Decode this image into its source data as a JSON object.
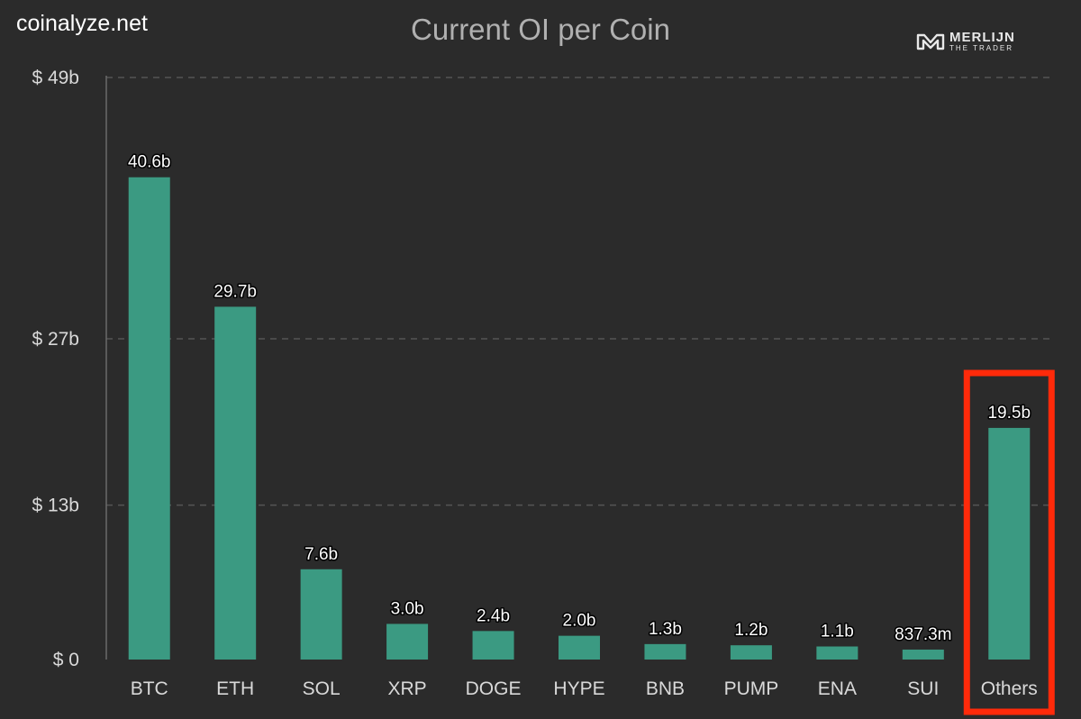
{
  "header": {
    "site_name": "coinalyze.net",
    "brand_line1": "MERLIJN",
    "brand_line2": "THE TRADER"
  },
  "colors": {
    "background": "#2b2b2b",
    "bar": "#3b9a82",
    "highlight_box": "#ff2a0a",
    "grid": "#555555"
  },
  "chart_data": {
    "type": "bar",
    "title": "Current OI per Coin",
    "xlabel": "",
    "ylabel": "",
    "categories": [
      "BTC",
      "ETH",
      "SOL",
      "XRP",
      "DOGE",
      "HYPE",
      "BNB",
      "PUMP",
      "ENA",
      "SUI",
      "Others"
    ],
    "values": [
      40.6,
      29.7,
      7.6,
      3.0,
      2.4,
      2.0,
      1.3,
      1.2,
      1.1,
      0.8373,
      19.5
    ],
    "value_labels": [
      "40.6b",
      "29.7b",
      "7.6b",
      "3.0b",
      "2.4b",
      "2.0b",
      "1.3b",
      "1.2b",
      "1.1b",
      "837.3m",
      "19.5b"
    ],
    "unit": "billion USD",
    "ylim": [
      0,
      49
    ],
    "yticks": [
      0,
      13,
      27,
      49
    ],
    "ytick_labels": [
      "$ 0",
      "$ 13b",
      "$ 27b",
      "$ 49b"
    ],
    "grid": true,
    "highlighted_category": "Others"
  }
}
